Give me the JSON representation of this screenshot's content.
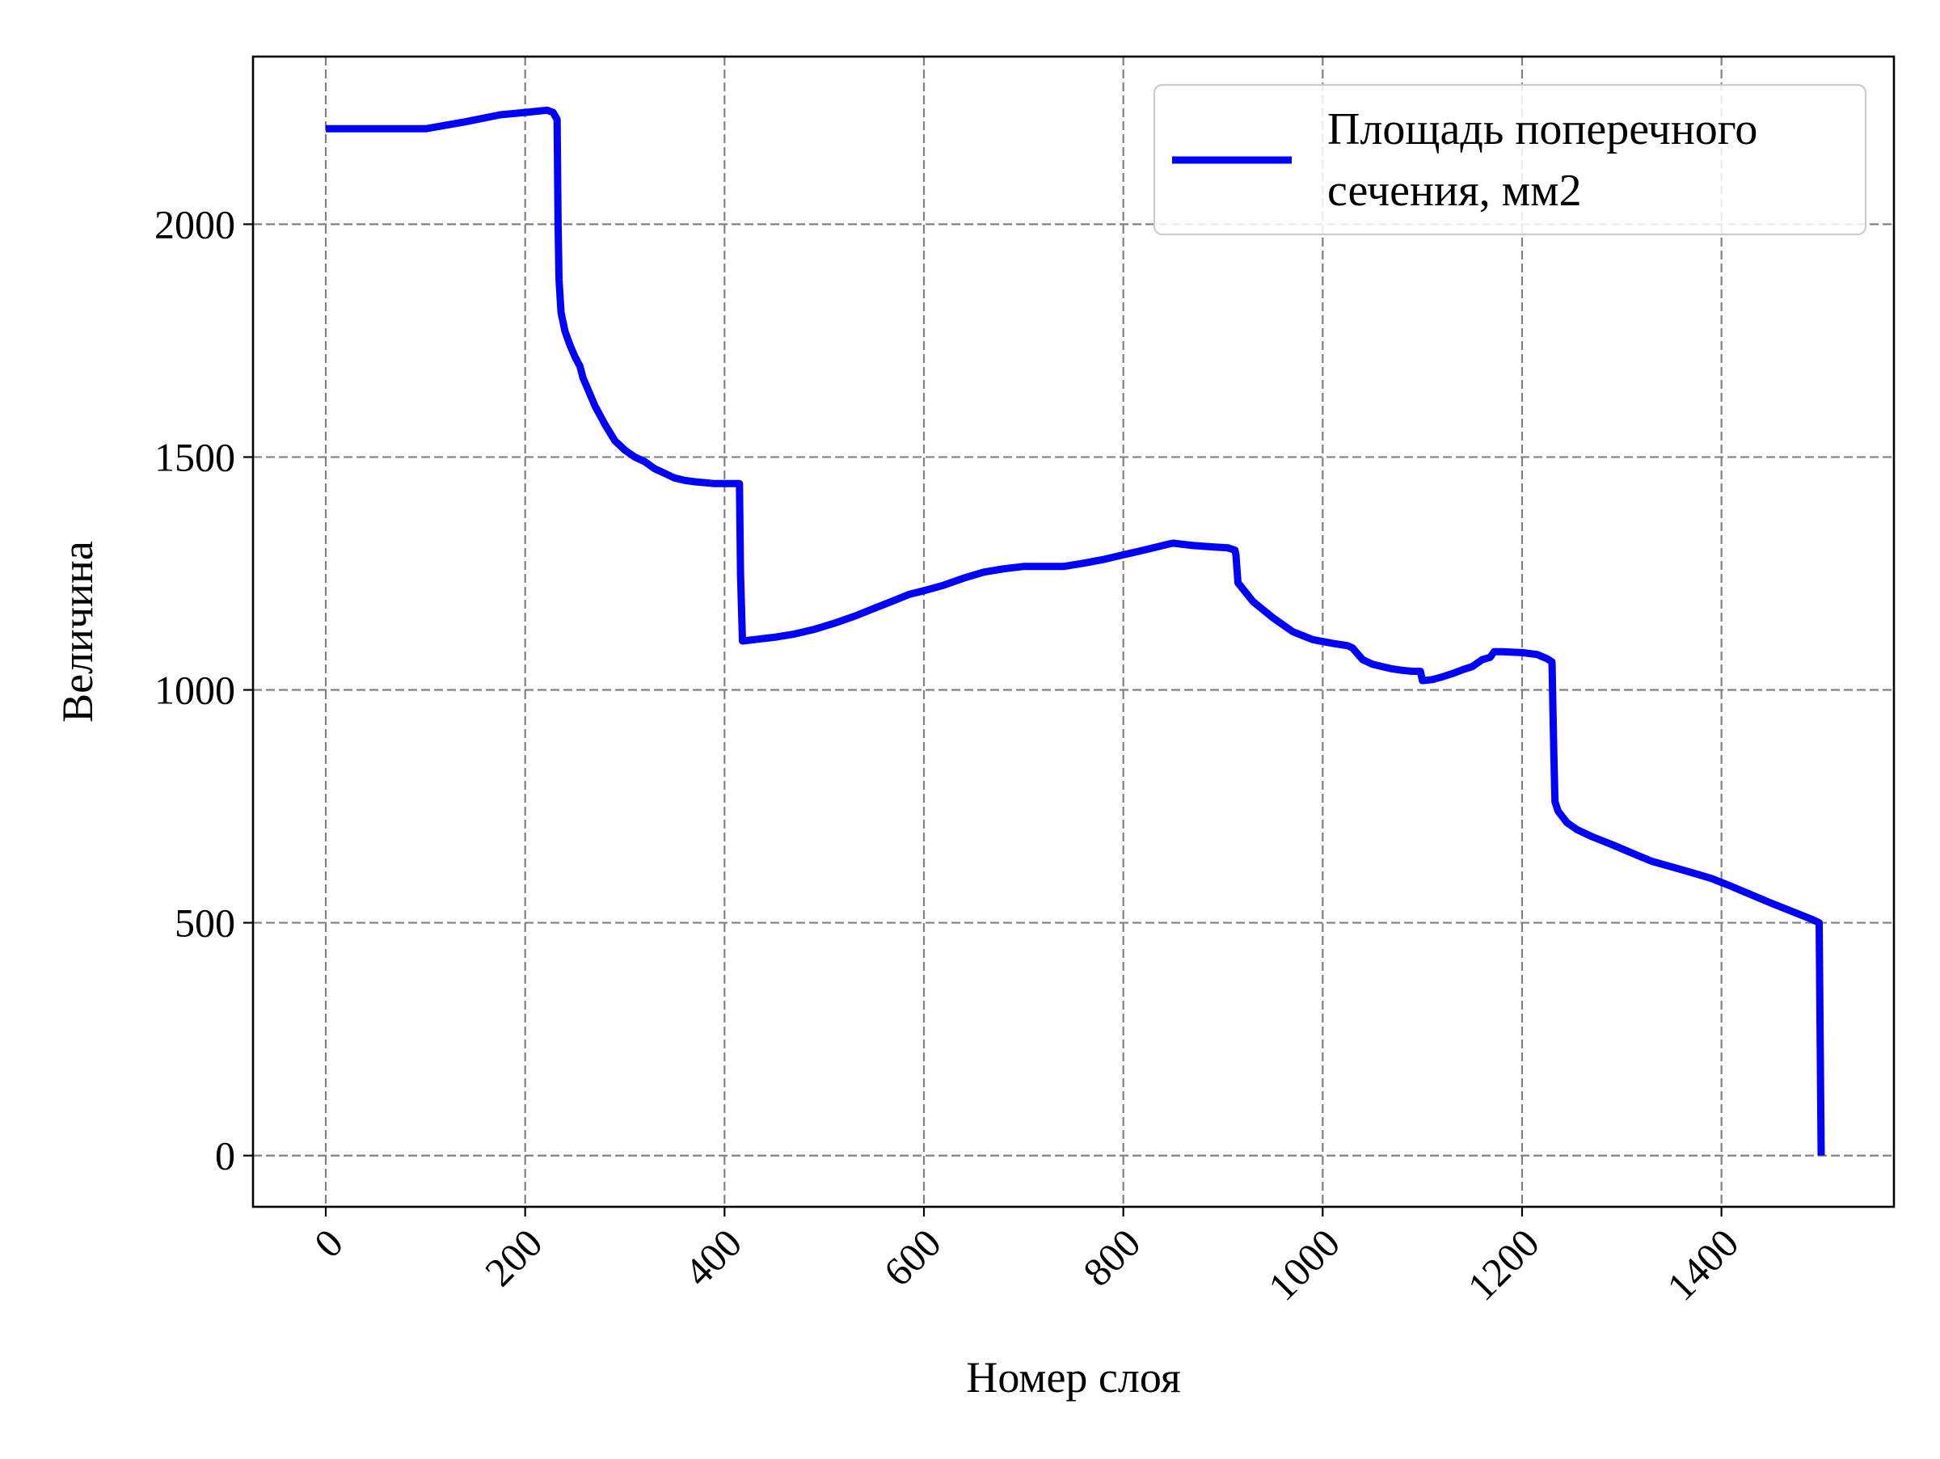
{
  "chart_data": {
    "type": "line",
    "title": "",
    "xlabel": "Номер слоя",
    "ylabel": "Величина",
    "xlim": [
      -73,
      1573
    ],
    "ylim": [
      -110,
      2360
    ],
    "x_ticks": [
      0,
      200,
      400,
      600,
      800,
      1000,
      1200,
      1400
    ],
    "y_ticks": [
      0,
      500,
      1000,
      1500,
      2000
    ],
    "x_tick_labels": [
      "0",
      "200",
      "400",
      "600",
      "800",
      "1000",
      "1200",
      "1400"
    ],
    "y_tick_labels": [
      "0",
      "500",
      "1000",
      "1500",
      "2000"
    ],
    "x_tick_rotation": 45,
    "grid": true,
    "legend_position": "top-right",
    "series": [
      {
        "name": "Площадь поперечного сечения, мм2",
        "legend_lines": [
          "Площадь поперечного",
          "сечения, мм2"
        ],
        "color": "#0000ff",
        "x": [
          0,
          50,
          100,
          140,
          175,
          200,
          222,
          228,
          232,
          233,
          234,
          236,
          240,
          245,
          250,
          255,
          258,
          262,
          270,
          280,
          290,
          300,
          310,
          320,
          330,
          340,
          350,
          360,
          370,
          380,
          390,
          400,
          405,
          415,
          416,
          418,
          430,
          450,
          470,
          490,
          510,
          530,
          550,
          570,
          585,
          600,
          620,
          640,
          660,
          680,
          700,
          720,
          740,
          760,
          780,
          800,
          820,
          845,
          850,
          870,
          890,
          905,
          912,
          913,
          915,
          930,
          950,
          970,
          990,
          1010,
          1025,
          1030,
          1040,
          1050,
          1060,
          1070,
          1080,
          1090,
          1098,
          1100,
          1110,
          1120,
          1130,
          1140,
          1150,
          1160,
          1168,
          1172,
          1180,
          1200,
          1215,
          1225,
          1230,
          1232,
          1233,
          1236,
          1245,
          1255,
          1270,
          1290,
          1310,
          1330,
          1350,
          1370,
          1390,
          1410,
          1430,
          1450,
          1470,
          1490,
          1498,
          1500
        ],
        "y": [
          2205,
          2205,
          2205,
          2220,
          2235,
          2240,
          2245,
          2240,
          2225,
          2000,
          1880,
          1810,
          1770,
          1740,
          1715,
          1695,
          1670,
          1650,
          1610,
          1570,
          1535,
          1515,
          1500,
          1490,
          1475,
          1465,
          1455,
          1450,
          1447,
          1445,
          1443,
          1443,
          1443,
          1443,
          1250,
          1105,
          1108,
          1113,
          1120,
          1130,
          1143,
          1158,
          1175,
          1192,
          1205,
          1213,
          1225,
          1240,
          1253,
          1260,
          1265,
          1265,
          1265,
          1272,
          1280,
          1290,
          1300,
          1313,
          1315,
          1310,
          1307,
          1305,
          1300,
          1290,
          1230,
          1190,
          1155,
          1125,
          1108,
          1100,
          1095,
          1090,
          1065,
          1055,
          1050,
          1045,
          1042,
          1040,
          1040,
          1020,
          1022,
          1028,
          1035,
          1043,
          1050,
          1065,
          1070,
          1082,
          1082,
          1080,
          1076,
          1067,
          1060,
          850,
          760,
          740,
          715,
          700,
          685,
          668,
          650,
          632,
          620,
          608,
          595,
          578,
          560,
          542,
          525,
          508,
          500,
          0
        ]
      }
    ]
  }
}
